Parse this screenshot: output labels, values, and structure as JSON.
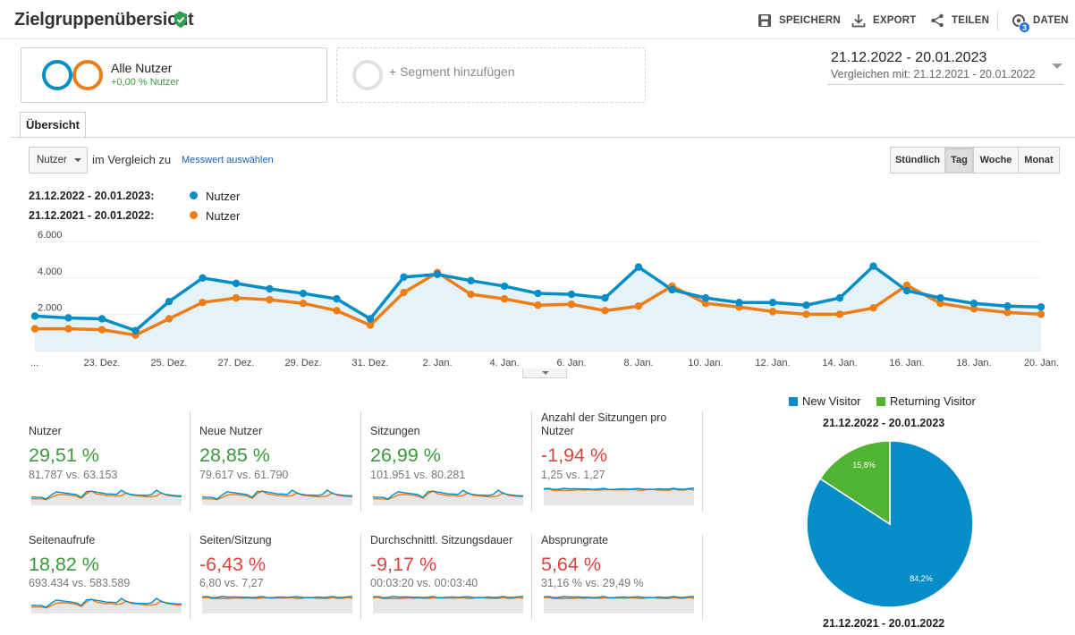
{
  "header": {
    "title": "Zielgruppenübersicht",
    "save": "SPEICHERN",
    "export": "EXPORT",
    "share": "TEILEN",
    "data": "DATEN",
    "data_badge": "3"
  },
  "segments": {
    "active_name": "Alle Nutzer",
    "active_pct": "+0,00 % Nutzer",
    "add": "+ Segment hinzufügen"
  },
  "date_range": {
    "main": "21.12.2022 - 20.01.2023",
    "compare": "Vergleichen mit: 21.12.2021 - 20.01.2022"
  },
  "tab": "Übersicht",
  "controls": {
    "metric": "Nutzer",
    "compare_text": "im Vergleich zu",
    "select_metric": "Messwert auswählen",
    "granularity": [
      "Stündlich",
      "Tag",
      "Woche",
      "Monat"
    ],
    "active_granularity": "Tag"
  },
  "legend": [
    {
      "range": "21.12.2022 - 20.01.2023:",
      "metric": "Nutzer",
      "color": "#058dc7"
    },
    {
      "range": "21.12.2021 - 20.01.2022:",
      "metric": "Nutzer",
      "color": "#ed7e17"
    }
  ],
  "chart_data": {
    "type": "line",
    "x": [
      "21. Dez.",
      "22. Dez.",
      "23. Dez.",
      "24. Dez.",
      "25. Dez.",
      "26. Dez.",
      "27. Dez.",
      "28. Dez.",
      "29. Dez.",
      "30. Dez.",
      "31. Dez.",
      "1. Jan.",
      "2. Jan.",
      "3. Jan.",
      "4. Jan.",
      "5. Jan.",
      "6. Jan.",
      "7. Jan.",
      "8. Jan.",
      "9. Jan.",
      "10. Jan.",
      "11. Jan.",
      "12. Jan.",
      "13. Jan.",
      "14. Jan.",
      "15. Jan.",
      "16. Jan.",
      "17. Jan.",
      "18. Jan.",
      "19. Jan.",
      "20. Jan."
    ],
    "tick_labels": [
      "...",
      "23. Dez.",
      "25. Dez.",
      "27. Dez.",
      "29. Dez.",
      "31. Dez.",
      "2. Jan.",
      "4. Jan.",
      "6. Jan.",
      "8. Jan.",
      "10. Jan.",
      "12. Jan.",
      "14. Jan.",
      "16. Jan.",
      "18. Jan.",
      "20. Jan."
    ],
    "y_ticks": [
      "2.000",
      "4.000",
      "6.000"
    ],
    "ylim": [
      0,
      6000
    ],
    "series": [
      {
        "name": "Nutzer",
        "range": "21.12.2022 - 20.01.2023",
        "color": "#058dc7",
        "values": [
          1900,
          1800,
          1750,
          1100,
          2700,
          4000,
          3700,
          3400,
          3150,
          2850,
          1750,
          4050,
          4200,
          3850,
          3550,
          3150,
          3100,
          2900,
          4600,
          3350,
          2900,
          2650,
          2650,
          2500,
          2900,
          4650,
          3300,
          2900,
          2600,
          2450,
          2400
        ]
      },
      {
        "name": "Nutzer",
        "range": "21.12.2021 - 20.01.2022",
        "color": "#ed7e17",
        "values": [
          1200,
          1200,
          1150,
          850,
          1750,
          2650,
          2900,
          2800,
          2600,
          2200,
          1400,
          3200,
          4300,
          3100,
          2850,
          2500,
          2550,
          2200,
          2450,
          3550,
          2600,
          2400,
          2150,
          2000,
          2000,
          2350,
          3600,
          2600,
          2300,
          2100,
          2000
        ]
      }
    ],
    "grid": true
  },
  "metrics": [
    {
      "label": "Nutzer",
      "pct": "29,51 %",
      "dir": "up",
      "vs": "81.787 vs. 63.153"
    },
    {
      "label": "Neue Nutzer",
      "pct": "28,85 %",
      "dir": "up",
      "vs": "79.617 vs. 61.790"
    },
    {
      "label": "Sitzungen",
      "pct": "26,99 %",
      "dir": "up",
      "vs": "101.951 vs. 80.281"
    },
    {
      "label": "Anzahl der Sitzungen pro Nutzer",
      "pct": "-1,94 %",
      "dir": "down",
      "vs": "1,25 vs. 1,27"
    },
    {
      "label": "Seitenaufrufe",
      "pct": "18,82 %",
      "dir": "up",
      "vs": "693.434 vs. 583.589"
    },
    {
      "label": "Seiten/Sitzung",
      "pct": "-6,43 %",
      "dir": "down",
      "vs": "6,80 vs. 7,27"
    },
    {
      "label": "Durchschnittl. Sitzungsdauer",
      "pct": "-9,17 %",
      "dir": "down",
      "vs": "00:03:20 vs. 00:03:40"
    },
    {
      "label": "Absprungrate",
      "pct": "5,64 %",
      "dir": "down",
      "vs": "31,16 % vs. 29,49 %"
    }
  ],
  "pie": {
    "legend": [
      {
        "name": "New Visitor",
        "color": "#058dc7"
      },
      {
        "name": "Returning Visitor",
        "color": "#50b432"
      }
    ],
    "range_top": "21.12.2022 - 20.01.2023",
    "range_bottom": "21.12.2021 - 20.01.2022",
    "slices": [
      {
        "name": "New Visitor",
        "value": 84.2,
        "label": "84,2%",
        "color": "#058dc7"
      },
      {
        "name": "Returning Visitor",
        "value": 15.8,
        "label": "15,8%",
        "color": "#50b432"
      }
    ]
  }
}
